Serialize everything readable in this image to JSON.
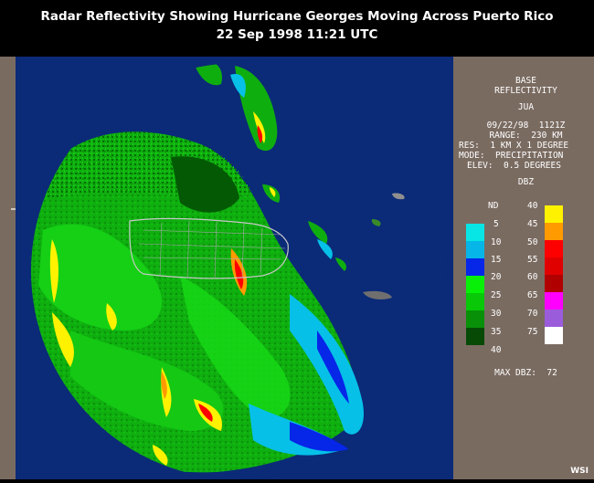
{
  "title": {
    "line1": "Radar Reflectivity Showing Hurricane Georges Moving Across Puerto Rico",
    "line2": "22 Sep 1998 11:21 UTC"
  },
  "panel": {
    "heading1": "BASE",
    "heading2": "REFLECTIVITY",
    "station": "JUA",
    "datetime": "09/22/98  1121Z",
    "range": "RANGE:  230 KM",
    "res": "RES:  1 KM X 1 DEGREE",
    "mode": "MODE:  PRECIPITATION",
    "elev": "ELEV:  0.5 DEGREES",
    "units": "DBZ",
    "max_dbz": "MAX DBZ:  72"
  },
  "legend": {
    "left": [
      {
        "label": "ND",
        "color": ""
      },
      {
        "label": "5",
        "color": "#07e5e5"
      },
      {
        "label": "10",
        "color": "#06b6e8"
      },
      {
        "label": "15",
        "color": "#0626e8"
      },
      {
        "label": "20",
        "color": "#08f008"
      },
      {
        "label": "25",
        "color": "#08c808"
      },
      {
        "label": "30",
        "color": "#089008"
      },
      {
        "label": "35",
        "color": "#064a06"
      },
      {
        "label": "40",
        "color": ""
      }
    ],
    "right": [
      {
        "label": "40",
        "color": "#fff200"
      },
      {
        "label": "45",
        "color": "#ff9a00"
      },
      {
        "label": "50",
        "color": "#ff0000"
      },
      {
        "label": "55",
        "color": "#e00000"
      },
      {
        "label": "60",
        "color": "#b00000"
      },
      {
        "label": "65",
        "color": "#ff00ff"
      },
      {
        "label": "70",
        "color": "#9b5cdc"
      },
      {
        "label": "75",
        "color": "#ffffff"
      }
    ]
  },
  "footer": {
    "brand": "WSI"
  }
}
